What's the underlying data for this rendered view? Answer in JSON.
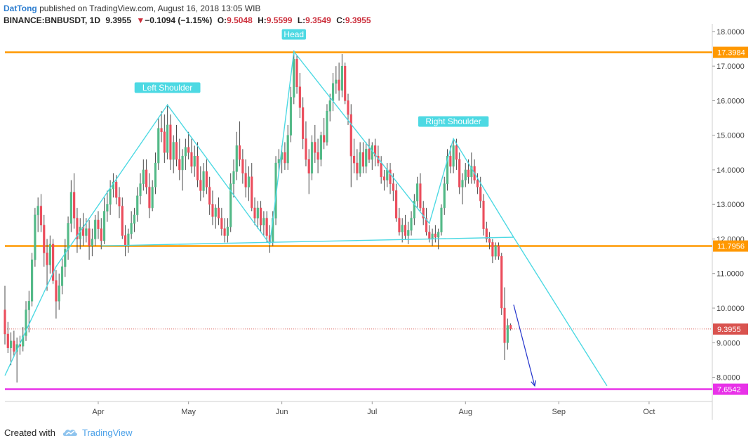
{
  "header": {
    "author": "DatTong",
    "published_text": " published on TradingView.com, August 16, 2018 13:05 WIB",
    "symbol": "BINANCE:BNBUSDT, 1D",
    "last": "9.3955",
    "arrow": "▼",
    "change": "−0.1094 (−1.15%)",
    "o_label": "O:",
    "o_value": "9.5048",
    "h_label": "H:",
    "h_value": "9.5599",
    "l_label": "L:",
    "l_value": "9.3549",
    "c_label": "C:",
    "c_value": "9.3955"
  },
  "footer": {
    "created_with": "Created with",
    "brand": "TradingView"
  },
  "colors": {
    "up": "#53b987",
    "down": "#eb4d5c",
    "wick": "#4a4a4a",
    "pattern_line": "#4dd9e3",
    "orange_level": "#ff9800",
    "magenta_level": "#e832e8",
    "arrow": "#2233cc",
    "last_price": "#d9534f",
    "axis_text": "#444444"
  },
  "chart_data": {
    "type": "candlestick",
    "y_axis_ticks": [
      "18.0000",
      "17.0000",
      "16.0000",
      "15.0000",
      "14.0000",
      "13.0000",
      "12.0000",
      "11.0000",
      "10.0000",
      "9.0000",
      "8.0000"
    ],
    "ylim": [
      7.3,
      18.1
    ],
    "x_axis_labels": [
      {
        "label": "Apr",
        "date": "2018-04-01"
      },
      {
        "label": "May",
        "date": "2018-05-01"
      },
      {
        "label": "Jun",
        "date": "2018-06-01"
      },
      {
        "label": "Jul",
        "date": "2018-07-01"
      },
      {
        "label": "Aug",
        "date": "2018-08-01"
      },
      {
        "label": "Sep",
        "date": "2018-09-01"
      },
      {
        "label": "Oct",
        "date": "2018-10-01"
      }
    ],
    "xlim": [
      "2018-03-01",
      "2018-10-22"
    ],
    "levels": [
      {
        "value": 17.3984,
        "label": "17.3984",
        "color": "#ff9800"
      },
      {
        "value": 11.7956,
        "label": "11.7956",
        "color": "#ff9800"
      },
      {
        "value": 7.6542,
        "label": "7.6542",
        "color": "#e832e8"
      }
    ],
    "last_price": {
      "value": 9.3955,
      "label": "9.3955"
    },
    "annotations": [
      {
        "text": "Left Shoulder",
        "date": "2018-04-24",
        "price": 15.88
      },
      {
        "text": "Head",
        "date": "2018-06-05",
        "price": 17.42
      },
      {
        "text": "Right Shoulder",
        "date": "2018-07-28",
        "price": 14.9
      }
    ],
    "pattern_lines": [
      [
        [
          "2018-03-01",
          8.05
        ],
        [
          "2018-03-18",
          11.2
        ],
        [
          "2018-04-24",
          15.88
        ],
        [
          "2018-05-28",
          11.85
        ],
        [
          "2018-06-05",
          17.42
        ],
        [
          "2018-07-20",
          12.45
        ],
        [
          "2018-07-28",
          14.9
        ],
        [
          "2018-08-17",
          12.05
        ],
        [
          "2018-09-17",
          7.75
        ]
      ],
      [
        [
          "2018-04-02",
          11.8
        ],
        [
          "2018-08-17",
          12.05
        ]
      ]
    ],
    "forecast_arrow": [
      [
        "2018-08-17",
        10.1
      ],
      [
        "2018-08-24",
        7.75
      ]
    ],
    "candles": [
      [
        "2018-03-01",
        9.95,
        10.65,
        8.95,
        9.25
      ],
      [
        "2018-03-02",
        9.25,
        9.6,
        8.7,
        8.85
      ],
      [
        "2018-03-03",
        8.85,
        9.3,
        8.35,
        9.05
      ],
      [
        "2018-03-04",
        9.05,
        9.35,
        8.6,
        8.75
      ],
      [
        "2018-03-05",
        8.75,
        9.15,
        7.85,
        8.95
      ],
      [
        "2018-03-06",
        8.95,
        9.2,
        8.65,
        8.9
      ],
      [
        "2018-03-07",
        8.9,
        9.45,
        8.75,
        9.2
      ],
      [
        "2018-03-08",
        9.2,
        10.2,
        9.05,
        9.95
      ],
      [
        "2018-03-09",
        9.95,
        10.5,
        9.3,
        10.2
      ],
      [
        "2018-03-10",
        10.2,
        11.6,
        10.05,
        11.4
      ],
      [
        "2018-03-11",
        11.4,
        12.9,
        11.2,
        12.7
      ],
      [
        "2018-03-12",
        12.7,
        13.2,
        12.2,
        12.95
      ],
      [
        "2018-03-13",
        12.95,
        13.3,
        12.2,
        12.4
      ],
      [
        "2018-03-14",
        12.4,
        12.7,
        11.2,
        11.6
      ],
      [
        "2018-03-15",
        11.6,
        12.0,
        10.5,
        11.25
      ],
      [
        "2018-03-16",
        11.25,
        12.1,
        11.0,
        11.85
      ],
      [
        "2018-03-17",
        11.85,
        12.0,
        10.7,
        10.8
      ],
      [
        "2018-03-18",
        10.8,
        11.1,
        9.7,
        10.2
      ],
      [
        "2018-03-19",
        10.2,
        11.0,
        9.95,
        10.65
      ],
      [
        "2018-03-20",
        10.65,
        11.45,
        10.4,
        11.2
      ],
      [
        "2018-03-21",
        11.2,
        12.0,
        10.9,
        11.7
      ],
      [
        "2018-03-22",
        11.7,
        12.65,
        11.4,
        12.45
      ],
      [
        "2018-03-23",
        12.45,
        13.7,
        12.2,
        13.35
      ],
      [
        "2018-03-24",
        13.35,
        13.9,
        12.3,
        12.6
      ],
      [
        "2018-03-25",
        12.6,
        12.9,
        11.6,
        12.0
      ],
      [
        "2018-03-26",
        12.0,
        12.6,
        11.7,
        12.35
      ],
      [
        "2018-03-27",
        12.35,
        12.75,
        11.8,
        12.1
      ],
      [
        "2018-03-28",
        12.1,
        12.6,
        11.9,
        12.3
      ],
      [
        "2018-03-29",
        12.3,
        12.55,
        11.4,
        11.8
      ],
      [
        "2018-03-30",
        11.8,
        12.3,
        11.5,
        12.0
      ],
      [
        "2018-03-31",
        12.0,
        12.7,
        11.8,
        12.55
      ],
      [
        "2018-04-01",
        12.55,
        12.8,
        12.0,
        12.3
      ],
      [
        "2018-04-02",
        12.3,
        12.6,
        11.7,
        11.95
      ],
      [
        "2018-04-03",
        11.95,
        13.2,
        11.85,
        12.8
      ],
      [
        "2018-04-04",
        12.8,
        13.4,
        12.5,
        13.0
      ],
      [
        "2018-04-05",
        13.0,
        13.7,
        12.7,
        13.45
      ],
      [
        "2018-04-06",
        13.45,
        13.9,
        13.2,
        13.65
      ],
      [
        "2018-04-07",
        13.65,
        13.85,
        13.0,
        13.2
      ],
      [
        "2018-04-08",
        13.2,
        13.5,
        12.6,
        12.95
      ],
      [
        "2018-04-09",
        12.95,
        13.2,
        12.0,
        12.1
      ],
      [
        "2018-04-10",
        12.1,
        12.4,
        11.5,
        11.8
      ],
      [
        "2018-04-11",
        11.8,
        12.3,
        11.6,
        12.15
      ],
      [
        "2018-04-12",
        12.15,
        12.8,
        12.0,
        12.45
      ],
      [
        "2018-04-13",
        12.45,
        12.9,
        12.2,
        12.7
      ],
      [
        "2018-04-14",
        12.7,
        13.5,
        12.5,
        13.25
      ],
      [
        "2018-04-15",
        13.25,
        13.9,
        13.0,
        13.6
      ],
      [
        "2018-04-16",
        13.6,
        14.3,
        13.4,
        14.0
      ],
      [
        "2018-04-17",
        14.0,
        14.3,
        13.3,
        13.5
      ],
      [
        "2018-04-18",
        13.5,
        13.9,
        12.6,
        12.9
      ],
      [
        "2018-04-19",
        12.9,
        13.7,
        12.8,
        13.5
      ],
      [
        "2018-04-20",
        13.5,
        14.5,
        13.3,
        14.2
      ],
      [
        "2018-04-21",
        14.2,
        15.5,
        14.0,
        15.2
      ],
      [
        "2018-04-22",
        15.2,
        15.7,
        14.8,
        15.1
      ],
      [
        "2018-04-23",
        15.1,
        15.6,
        14.2,
        14.5
      ],
      [
        "2018-04-24",
        14.5,
        15.9,
        14.3,
        15.3
      ],
      [
        "2018-04-25",
        15.3,
        15.6,
        14.0,
        14.3
      ],
      [
        "2018-04-26",
        14.3,
        15.0,
        13.9,
        14.8
      ],
      [
        "2018-04-27",
        14.8,
        15.3,
        14.1,
        14.3
      ],
      [
        "2018-04-28",
        14.3,
        14.9,
        13.7,
        14.0
      ],
      [
        "2018-04-29",
        14.0,
        14.6,
        13.4,
        14.4
      ],
      [
        "2018-04-30",
        14.4,
        14.9,
        14.0,
        14.65
      ],
      [
        "2018-05-01",
        14.65,
        15.1,
        14.3,
        14.5
      ],
      [
        "2018-05-02",
        14.5,
        14.9,
        13.9,
        14.1
      ],
      [
        "2018-05-03",
        14.1,
        14.7,
        13.8,
        14.4
      ],
      [
        "2018-05-04",
        14.4,
        14.8,
        13.5,
        13.7
      ],
      [
        "2018-05-05",
        13.7,
        14.1,
        13.1,
        13.4
      ],
      [
        "2018-05-06",
        13.4,
        14.2,
        13.2,
        13.95
      ],
      [
        "2018-05-07",
        13.95,
        14.3,
        13.3,
        13.5
      ],
      [
        "2018-05-08",
        13.5,
        13.8,
        12.7,
        13.0
      ],
      [
        "2018-05-09",
        13.0,
        13.4,
        12.4,
        12.65
      ],
      [
        "2018-05-10",
        12.65,
        13.0,
        12.3,
        12.9
      ],
      [
        "2018-05-11",
        12.9,
        13.2,
        12.4,
        12.6
      ],
      [
        "2018-05-12",
        12.6,
        12.9,
        12.1,
        12.3
      ],
      [
        "2018-05-13",
        12.3,
        12.6,
        11.9,
        12.1
      ],
      [
        "2018-05-14",
        12.1,
        12.6,
        11.9,
        12.35
      ],
      [
        "2018-05-15",
        12.35,
        13.9,
        12.2,
        13.6
      ],
      [
        "2018-05-16",
        13.6,
        14.3,
        13.2,
        13.95
      ],
      [
        "2018-05-17",
        13.95,
        15.1,
        13.7,
        14.7
      ],
      [
        "2018-05-18",
        14.7,
        15.4,
        14.1,
        14.3
      ],
      [
        "2018-05-19",
        14.3,
        14.6,
        13.6,
        13.9
      ],
      [
        "2018-05-20",
        13.9,
        14.3,
        13.2,
        13.5
      ],
      [
        "2018-05-21",
        13.5,
        14.1,
        13.1,
        13.8
      ],
      [
        "2018-05-22",
        13.8,
        14.2,
        12.8,
        12.9
      ],
      [
        "2018-05-23",
        12.9,
        13.2,
        12.4,
        12.6
      ],
      [
        "2018-05-24",
        12.6,
        13.1,
        12.3,
        12.9
      ],
      [
        "2018-05-25",
        12.9,
        13.1,
        12.2,
        12.4
      ],
      [
        "2018-05-26",
        12.4,
        12.8,
        12.1,
        12.6
      ],
      [
        "2018-05-27",
        12.6,
        12.8,
        11.9,
        12.1
      ],
      [
        "2018-05-28",
        12.1,
        12.4,
        11.6,
        11.9
      ],
      [
        "2018-05-29",
        11.9,
        12.8,
        11.8,
        12.6
      ],
      [
        "2018-05-30",
        12.6,
        14.4,
        12.4,
        14.2
      ],
      [
        "2018-05-31",
        14.2,
        14.6,
        13.9,
        14.3
      ],
      [
        "2018-06-01",
        14.3,
        14.7,
        13.9,
        14.5
      ],
      [
        "2018-06-02",
        14.5,
        14.8,
        14.0,
        14.2
      ],
      [
        "2018-06-03",
        14.2,
        15.3,
        14.0,
        15.0
      ],
      [
        "2018-06-04",
        15.0,
        16.4,
        14.8,
        16.1
      ],
      [
        "2018-06-05",
        16.1,
        17.45,
        15.9,
        17.2
      ],
      [
        "2018-06-06",
        17.2,
        17.3,
        16.2,
        16.4
      ],
      [
        "2018-06-07",
        16.4,
        16.8,
        15.5,
        15.8
      ],
      [
        "2018-06-08",
        15.8,
        16.1,
        14.6,
        14.9
      ],
      [
        "2018-06-09",
        14.9,
        15.4,
        14.1,
        14.3
      ],
      [
        "2018-06-10",
        14.3,
        14.6,
        13.3,
        13.9
      ],
      [
        "2018-06-11",
        13.9,
        15.0,
        13.7,
        14.8
      ],
      [
        "2018-06-12",
        14.8,
        15.3,
        14.2,
        14.5
      ],
      [
        "2018-06-13",
        14.5,
        14.9,
        13.9,
        14.3
      ],
      [
        "2018-06-14",
        14.3,
        15.1,
        14.1,
        15.0
      ],
      [
        "2018-06-15",
        15.0,
        15.5,
        14.6,
        14.8
      ],
      [
        "2018-06-16",
        14.8,
        15.9,
        14.7,
        15.7
      ],
      [
        "2018-06-17",
        15.7,
        16.2,
        15.4,
        16.0
      ],
      [
        "2018-06-18",
        16.0,
        16.8,
        15.7,
        16.5
      ],
      [
        "2018-06-19",
        16.5,
        17.0,
        16.2,
        16.6
      ],
      [
        "2018-06-20",
        16.6,
        17.1,
        16.0,
        16.3
      ],
      [
        "2018-06-21",
        16.3,
        17.35,
        16.1,
        17.0
      ],
      [
        "2018-06-22",
        17.0,
        17.1,
        15.9,
        16.0
      ],
      [
        "2018-06-23",
        16.0,
        16.2,
        15.3,
        15.6
      ],
      [
        "2018-06-24",
        15.6,
        15.9,
        13.5,
        14.4
      ],
      [
        "2018-06-25",
        14.4,
        14.9,
        13.9,
        14.2
      ],
      [
        "2018-06-26",
        14.2,
        14.6,
        13.7,
        13.9
      ],
      [
        "2018-06-27",
        13.9,
        14.8,
        13.8,
        14.5
      ],
      [
        "2018-06-28",
        14.5,
        14.8,
        13.9,
        14.1
      ],
      [
        "2018-06-29",
        14.1,
        14.8,
        13.9,
        14.6
      ],
      [
        "2018-06-30",
        14.6,
        14.9,
        14.2,
        14.3
      ],
      [
        "2018-07-01",
        14.3,
        14.8,
        14.0,
        14.7
      ],
      [
        "2018-07-02",
        14.7,
        14.9,
        14.1,
        14.4
      ],
      [
        "2018-07-03",
        14.4,
        14.7,
        14.1,
        14.2
      ],
      [
        "2018-07-04",
        14.2,
        14.4,
        13.6,
        13.8
      ],
      [
        "2018-07-05",
        13.8,
        14.0,
        13.4,
        13.7
      ],
      [
        "2018-07-06",
        13.7,
        14.2,
        13.5,
        14.0
      ],
      [
        "2018-07-07",
        14.0,
        14.2,
        13.3,
        13.6
      ],
      [
        "2018-07-08",
        13.6,
        13.9,
        13.1,
        13.4
      ],
      [
        "2018-07-09",
        13.4,
        13.6,
        12.5,
        12.6
      ],
      [
        "2018-07-10",
        12.6,
        12.9,
        12.1,
        12.2
      ],
      [
        "2018-07-11",
        12.2,
        12.6,
        11.9,
        12.4
      ],
      [
        "2018-07-12",
        12.4,
        12.7,
        12.0,
        12.1
      ],
      [
        "2018-07-13",
        12.1,
        12.5,
        11.85,
        12.25
      ],
      [
        "2018-07-14",
        12.25,
        12.8,
        12.1,
        12.6
      ],
      [
        "2018-07-15",
        12.6,
        13.3,
        12.4,
        13.1
      ],
      [
        "2018-07-16",
        13.1,
        13.8,
        12.9,
        13.6
      ],
      [
        "2018-07-17",
        13.6,
        13.9,
        12.8,
        12.9
      ],
      [
        "2018-07-18",
        12.9,
        13.1,
        12.4,
        12.6
      ],
      [
        "2018-07-19",
        12.6,
        12.9,
        12.1,
        12.2
      ],
      [
        "2018-07-20",
        12.2,
        12.4,
        11.9,
        12.0
      ],
      [
        "2018-07-21",
        12.0,
        12.3,
        11.8,
        12.15
      ],
      [
        "2018-07-22",
        12.15,
        12.4,
        11.9,
        12.05
      ],
      [
        "2018-07-23",
        12.05,
        12.3,
        11.7,
        12.2
      ],
      [
        "2018-07-24",
        12.2,
        13.0,
        12.1,
        12.9
      ],
      [
        "2018-07-25",
        12.9,
        13.8,
        12.7,
        13.6
      ],
      [
        "2018-07-26",
        13.6,
        14.6,
        13.4,
        14.4
      ],
      [
        "2018-07-27",
        14.4,
        14.7,
        13.9,
        14.1
      ],
      [
        "2018-07-28",
        14.1,
        14.9,
        13.9,
        14.7
      ],
      [
        "2018-07-29",
        14.7,
        14.9,
        14.0,
        14.3
      ],
      [
        "2018-07-30",
        14.3,
        14.5,
        13.3,
        13.5
      ],
      [
        "2018-07-31",
        13.5,
        13.9,
        13.0,
        13.7
      ],
      [
        "2018-08-01",
        13.7,
        14.2,
        13.5,
        14.0
      ],
      [
        "2018-08-02",
        14.0,
        14.3,
        13.6,
        13.8
      ],
      [
        "2018-08-03",
        13.8,
        14.5,
        13.6,
        14.1
      ],
      [
        "2018-08-04",
        14.1,
        14.3,
        13.6,
        13.7
      ],
      [
        "2018-08-05",
        13.7,
        13.9,
        13.3,
        13.5
      ],
      [
        "2018-08-06",
        13.5,
        13.8,
        12.9,
        13.1
      ],
      [
        "2018-08-07",
        13.1,
        13.3,
        12.1,
        12.3
      ],
      [
        "2018-08-08",
        12.3,
        12.5,
        11.9,
        12.0
      ],
      [
        "2018-08-09",
        12.0,
        12.2,
        11.7,
        11.9
      ],
      [
        "2018-08-10",
        11.9,
        12.0,
        11.3,
        11.5
      ],
      [
        "2018-08-11",
        11.5,
        11.9,
        11.4,
        11.8
      ],
      [
        "2018-08-12",
        11.8,
        11.9,
        11.4,
        11.5
      ],
      [
        "2018-08-13",
        11.5,
        11.6,
        9.8,
        10.0
      ],
      [
        "2018-08-14",
        10.0,
        10.6,
        8.5,
        9.0
      ],
      [
        "2018-08-15",
        9.0,
        9.7,
        8.8,
        9.5
      ],
      [
        "2018-08-16",
        9.5048,
        9.5599,
        9.3549,
        9.3955
      ]
    ]
  }
}
